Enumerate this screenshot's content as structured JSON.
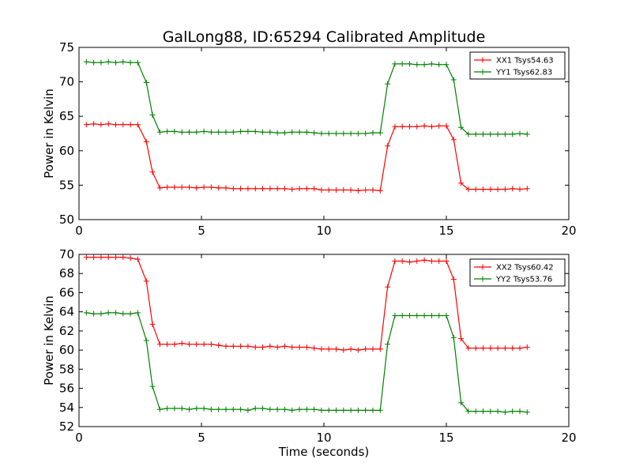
{
  "title": "GalLong88, ID:65294 Calibrated Amplitude",
  "chart_data": [
    {
      "type": "line",
      "xlabel": "",
      "ylabel": "Power in Kelvin",
      "xlim": [
        0,
        20
      ],
      "ylim": [
        50,
        75
      ],
      "xticks": [
        0,
        5,
        10,
        15,
        20
      ],
      "yticks": [
        50,
        55,
        60,
        65,
        70,
        75
      ],
      "legend_position": "top-right",
      "x": [
        0.3,
        0.6,
        0.9,
        1.2,
        1.5,
        1.8,
        2.1,
        2.4,
        2.75,
        3.0,
        3.3,
        3.6,
        3.9,
        4.2,
        4.5,
        4.8,
        5.1,
        5.4,
        5.7,
        6.0,
        6.3,
        6.6,
        6.9,
        7.2,
        7.5,
        7.8,
        8.1,
        8.4,
        8.7,
        9.0,
        9.3,
        9.6,
        9.9,
        10.2,
        10.5,
        10.8,
        11.1,
        11.4,
        11.7,
        12.0,
        12.3,
        12.6,
        12.9,
        13.2,
        13.5,
        13.8,
        14.1,
        14.4,
        14.7,
        15.0,
        15.3,
        15.6,
        15.9,
        16.2,
        16.5,
        16.8,
        17.1,
        17.4,
        17.7,
        18.0,
        18.3
      ],
      "series": [
        {
          "name": "XX1 Tsys54.63",
          "color": "#ff0000",
          "values": [
            63.8,
            63.9,
            63.8,
            63.9,
            63.8,
            63.8,
            63.8,
            63.8,
            61.3,
            56.9,
            54.6,
            54.7,
            54.7,
            54.7,
            54.7,
            54.6,
            54.7,
            54.7,
            54.6,
            54.6,
            54.5,
            54.5,
            54.5,
            54.5,
            54.5,
            54.5,
            54.5,
            54.5,
            54.4,
            54.5,
            54.5,
            54.5,
            54.3,
            54.3,
            54.3,
            54.3,
            54.3,
            54.2,
            54.3,
            54.3,
            54.2,
            60.7,
            63.5,
            63.5,
            63.5,
            63.5,
            63.6,
            63.5,
            63.6,
            63.6,
            61.6,
            55.3,
            54.4,
            54.4,
            54.4,
            54.4,
            54.4,
            54.4,
            54.5,
            54.4,
            54.5
          ]
        },
        {
          "name": "YY1 Tsys62.83",
          "color": "#008000",
          "values": [
            72.9,
            72.8,
            72.8,
            72.9,
            72.8,
            72.9,
            72.8,
            72.8,
            69.9,
            65.2,
            62.7,
            62.8,
            62.8,
            62.7,
            62.7,
            62.7,
            62.8,
            62.7,
            62.7,
            62.7,
            62.7,
            62.8,
            62.8,
            62.8,
            62.7,
            62.7,
            62.6,
            62.6,
            62.7,
            62.7,
            62.7,
            62.6,
            62.5,
            62.5,
            62.5,
            62.5,
            62.5,
            62.5,
            62.5,
            62.6,
            62.6,
            69.7,
            72.6,
            72.6,
            72.6,
            72.5,
            72.5,
            72.6,
            72.5,
            72.5,
            70.3,
            63.4,
            62.4,
            62.4,
            62.4,
            62.4,
            62.4,
            62.4,
            62.4,
            62.5,
            62.4
          ]
        }
      ]
    },
    {
      "type": "line",
      "xlabel": "Time (seconds)",
      "ylabel": "Power in Kelvin",
      "xlim": [
        0,
        20
      ],
      "ylim": [
        52,
        70
      ],
      "xticks": [
        0,
        5,
        10,
        15,
        20
      ],
      "yticks": [
        52,
        54,
        56,
        58,
        60,
        62,
        64,
        66,
        68,
        70
      ],
      "legend_position": "top-right",
      "x": [
        0.3,
        0.6,
        0.9,
        1.2,
        1.5,
        1.8,
        2.1,
        2.4,
        2.75,
        3.0,
        3.3,
        3.6,
        3.9,
        4.2,
        4.5,
        4.8,
        5.1,
        5.4,
        5.7,
        6.0,
        6.3,
        6.6,
        6.9,
        7.2,
        7.5,
        7.8,
        8.1,
        8.4,
        8.7,
        9.0,
        9.3,
        9.6,
        9.9,
        10.2,
        10.5,
        10.8,
        11.1,
        11.4,
        11.7,
        12.0,
        12.3,
        12.6,
        12.9,
        13.2,
        13.5,
        13.8,
        14.1,
        14.4,
        14.7,
        15.0,
        15.3,
        15.6,
        15.9,
        16.2,
        16.5,
        16.8,
        17.1,
        17.4,
        17.7,
        18.0,
        18.3
      ],
      "series": [
        {
          "name": "XX2 Tsys60.42",
          "color": "#ff0000",
          "values": [
            69.7,
            69.7,
            69.7,
            69.7,
            69.7,
            69.7,
            69.6,
            69.5,
            67.2,
            62.7,
            60.6,
            60.6,
            60.6,
            60.7,
            60.6,
            60.6,
            60.6,
            60.6,
            60.5,
            60.4,
            60.4,
            60.4,
            60.4,
            60.3,
            60.3,
            60.4,
            60.3,
            60.4,
            60.3,
            60.3,
            60.3,
            60.2,
            60.1,
            60.1,
            60.1,
            60.0,
            60.1,
            60.0,
            60.1,
            60.1,
            60.1,
            66.6,
            69.3,
            69.3,
            69.2,
            69.3,
            69.4,
            69.3,
            69.3,
            69.3,
            67.4,
            61.2,
            60.2,
            60.2,
            60.2,
            60.2,
            60.2,
            60.2,
            60.2,
            60.2,
            60.3
          ]
        },
        {
          "name": "YY2 Tsys53.76",
          "color": "#008000",
          "values": [
            63.9,
            63.8,
            63.8,
            63.9,
            63.9,
            63.8,
            63.8,
            63.9,
            61.0,
            56.2,
            53.8,
            53.9,
            53.9,
            53.9,
            53.8,
            53.9,
            53.9,
            53.8,
            53.8,
            53.8,
            53.8,
            53.8,
            53.7,
            53.9,
            53.9,
            53.8,
            53.8,
            53.8,
            53.7,
            53.8,
            53.8,
            53.8,
            53.7,
            53.7,
            53.7,
            53.7,
            53.7,
            53.7,
            53.7,
            53.7,
            53.7,
            60.6,
            63.6,
            63.6,
            63.6,
            63.6,
            63.6,
            63.6,
            63.6,
            63.6,
            61.3,
            54.5,
            53.6,
            53.6,
            53.6,
            53.6,
            53.6,
            53.5,
            53.6,
            53.6,
            53.5
          ]
        }
      ]
    }
  ]
}
